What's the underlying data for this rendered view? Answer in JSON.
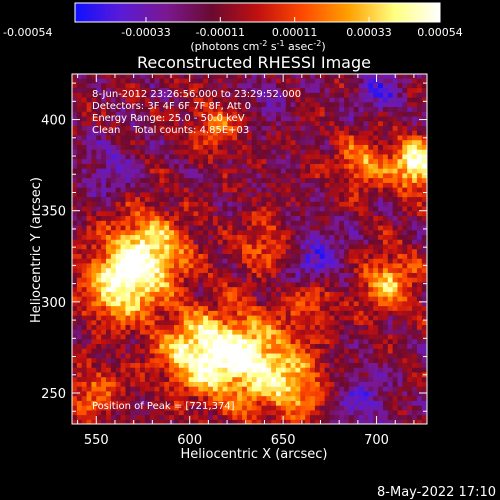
{
  "chart_data": {
    "type": "heatmap",
    "title": "Reconstructed RHESSI Image",
    "xlabel": "Heliocentric X (arcsec)",
    "ylabel": "Heliocentric Y (arcsec)",
    "xlim": [
      537,
      727
    ],
    "ylim": [
      233,
      425
    ],
    "x_ticks": [
      550,
      600,
      650,
      700
    ],
    "y_ticks": [
      250,
      300,
      350,
      400
    ],
    "grid": false,
    "colorbar": {
      "position": "top",
      "range": [
        -0.00054,
        0.00054
      ],
      "tick_values": [
        -0.00054,
        -0.00033,
        -0.00011,
        0.00011,
        0.00033,
        0.00054
      ],
      "tick_labels": [
        "-0.00054",
        "-0.00033",
        "-0.00011",
        "0.00011",
        "0.00033",
        "0.00054"
      ],
      "unit_parts": [
        "(photons cm",
        "-2",
        " s",
        "-1",
        " asec",
        "-2",
        ")"
      ],
      "colors": [
        "#1010ff",
        "#5a1ad8",
        "#7a1890",
        "#6a0a30",
        "#c01010",
        "#ff4a00",
        "#ffa000",
        "#ffff80",
        "#ffffff"
      ]
    },
    "annotations": [
      "8-Jun-2012 23:26:56.000 to 23:29:52.000",
      "Detectors: 3F 4F 6F 7F 8F, Att 0",
      "Energy Range: 25.0 - 50.0 keV",
      "Clean    Total counts: 4.85E+03"
    ],
    "peak_label": "Position of Peak = [721,374]",
    "peak_position": [
      721,
      374
    ],
    "hot_spots": [
      {
        "x": 575,
        "y": 325,
        "w": 1.0,
        "r": 22
      },
      {
        "x": 560,
        "y": 305,
        "w": 0.8,
        "r": 18
      },
      {
        "x": 628,
        "y": 268,
        "w": 1.0,
        "r": 25
      },
      {
        "x": 600,
        "y": 272,
        "w": 0.8,
        "r": 20
      },
      {
        "x": 655,
        "y": 252,
        "w": 0.6,
        "r": 18
      },
      {
        "x": 721,
        "y": 374,
        "w": 1.1,
        "r": 14
      },
      {
        "x": 690,
        "y": 375,
        "w": 0.6,
        "r": 14
      },
      {
        "x": 705,
        "y": 310,
        "w": 0.7,
        "r": 16
      },
      {
        "x": 640,
        "y": 330,
        "w": 0.5,
        "r": 15
      },
      {
        "x": 612,
        "y": 395,
        "w": 0.5,
        "r": 14
      },
      {
        "x": 665,
        "y": 300,
        "w": 0.5,
        "r": 14
      },
      {
        "x": 548,
        "y": 250,
        "w": 0.5,
        "r": 14
      }
    ],
    "cool_spots": [
      {
        "x": 665,
        "y": 320,
        "w": 0.7,
        "r": 20
      },
      {
        "x": 690,
        "y": 245,
        "w": 0.6,
        "r": 16
      },
      {
        "x": 700,
        "y": 415,
        "w": 0.6,
        "r": 14
      },
      {
        "x": 555,
        "y": 370,
        "w": 0.5,
        "r": 16
      },
      {
        "x": 640,
        "y": 410,
        "w": 0.4,
        "r": 12
      }
    ]
  },
  "footer": {
    "date": "8-May-2022 17:10"
  }
}
